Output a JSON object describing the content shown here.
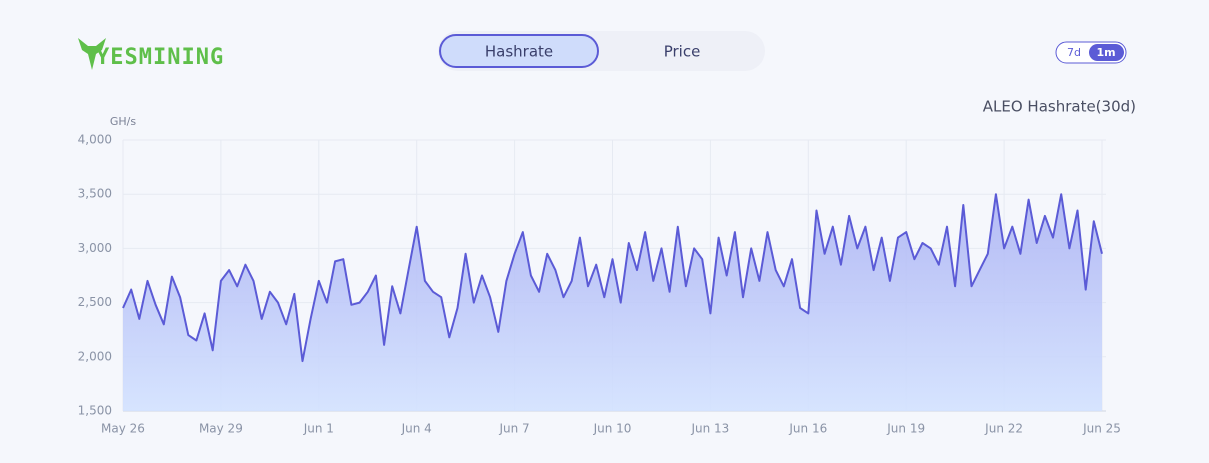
{
  "header": {
    "logo": "YESMINING",
    "tabs": [
      "Hashrate",
      "Price"
    ],
    "ranges": [
      "7d",
      "1m"
    ]
  },
  "chart_data": {
    "type": "line",
    "title": "ALEO Hashrate(30d)",
    "y_label": "GH/s",
    "categories": [
      "May 26",
      null,
      null,
      null,
      null,
      null,
      null,
      null,
      null,
      null,
      null,
      null,
      "May 29",
      null,
      null,
      null,
      null,
      null,
      null,
      null,
      null,
      null,
      null,
      null,
      "Jun 1",
      null,
      null,
      null,
      null,
      null,
      null,
      null,
      null,
      null,
      null,
      null,
      "Jun 4",
      null,
      null,
      null,
      null,
      null,
      null,
      null,
      null,
      null,
      null,
      null,
      "Jun 7",
      null,
      null,
      null,
      null,
      null,
      null,
      null,
      null,
      null,
      null,
      null,
      "Jun 10",
      null,
      null,
      null,
      null,
      null,
      null,
      null,
      null,
      null,
      null,
      null,
      "Jun 13",
      null,
      null,
      null,
      null,
      null,
      null,
      null,
      null,
      null,
      null,
      null,
      "Jun 16",
      null,
      null,
      null,
      null,
      null,
      null,
      null,
      null,
      null,
      null,
      null,
      "Jun 19",
      null,
      null,
      null,
      null,
      null,
      null,
      null,
      null,
      null,
      null,
      null,
      "Jun 22",
      null,
      null,
      null,
      null,
      null,
      null,
      null,
      null,
      null,
      null,
      null,
      "Jun 25"
    ],
    "series": [
      {
        "name": "Hashrate",
        "color": "#5b5bd6",
        "values": [
          2450,
          2620,
          2350,
          2700,
          2480,
          2300,
          2740,
          2550,
          2200,
          2150,
          2400,
          2060,
          2700,
          2800,
          2650,
          2850,
          2700,
          2350,
          2600,
          2500,
          2300,
          2580,
          1960,
          2350,
          2700,
          2500,
          2880,
          2900,
          2480,
          2500,
          2600,
          2750,
          2110,
          2650,
          2400,
          2800,
          3200,
          2700,
          2600,
          2550,
          2180,
          2450,
          2950,
          2500,
          2750,
          2550,
          2230,
          2700,
          2950,
          3150,
          2750,
          2600,
          2950,
          2800,
          2550,
          2700,
          3100,
          2650,
          2850,
          2550,
          2900,
          2500,
          3050,
          2800,
          3150,
          2700,
          3000,
          2600,
          3200,
          2650,
          3000,
          2900,
          2400,
          3100,
          2750,
          3150,
          2550,
          3000,
          2700,
          3150,
          2800,
          2650,
          2900,
          2450,
          2400,
          3350,
          2950,
          3200,
          2850,
          3300,
          3000,
          3200,
          2800,
          3100,
          2700,
          3100,
          3150,
          2900,
          3050,
          3000,
          2850,
          3200,
          2650,
          3400,
          2650,
          2800,
          2950,
          3500,
          3000,
          3200,
          2950,
          3450,
          3050,
          3300,
          3100,
          3500,
          3000,
          3350,
          2620,
          3250,
          2950
        ]
      }
    ],
    "ylim": [
      1500,
      4000
    ],
    "yticks": [
      {
        "value": 1500,
        "label": "1,500"
      },
      {
        "value": 2000,
        "label": "2,000"
      },
      {
        "value": 2500,
        "label": "2,500"
      },
      {
        "value": 3000,
        "label": "3,000"
      },
      {
        "value": 3500,
        "label": "3,500"
      },
      {
        "value": 4000,
        "label": "4,000"
      }
    ],
    "grid": true
  }
}
